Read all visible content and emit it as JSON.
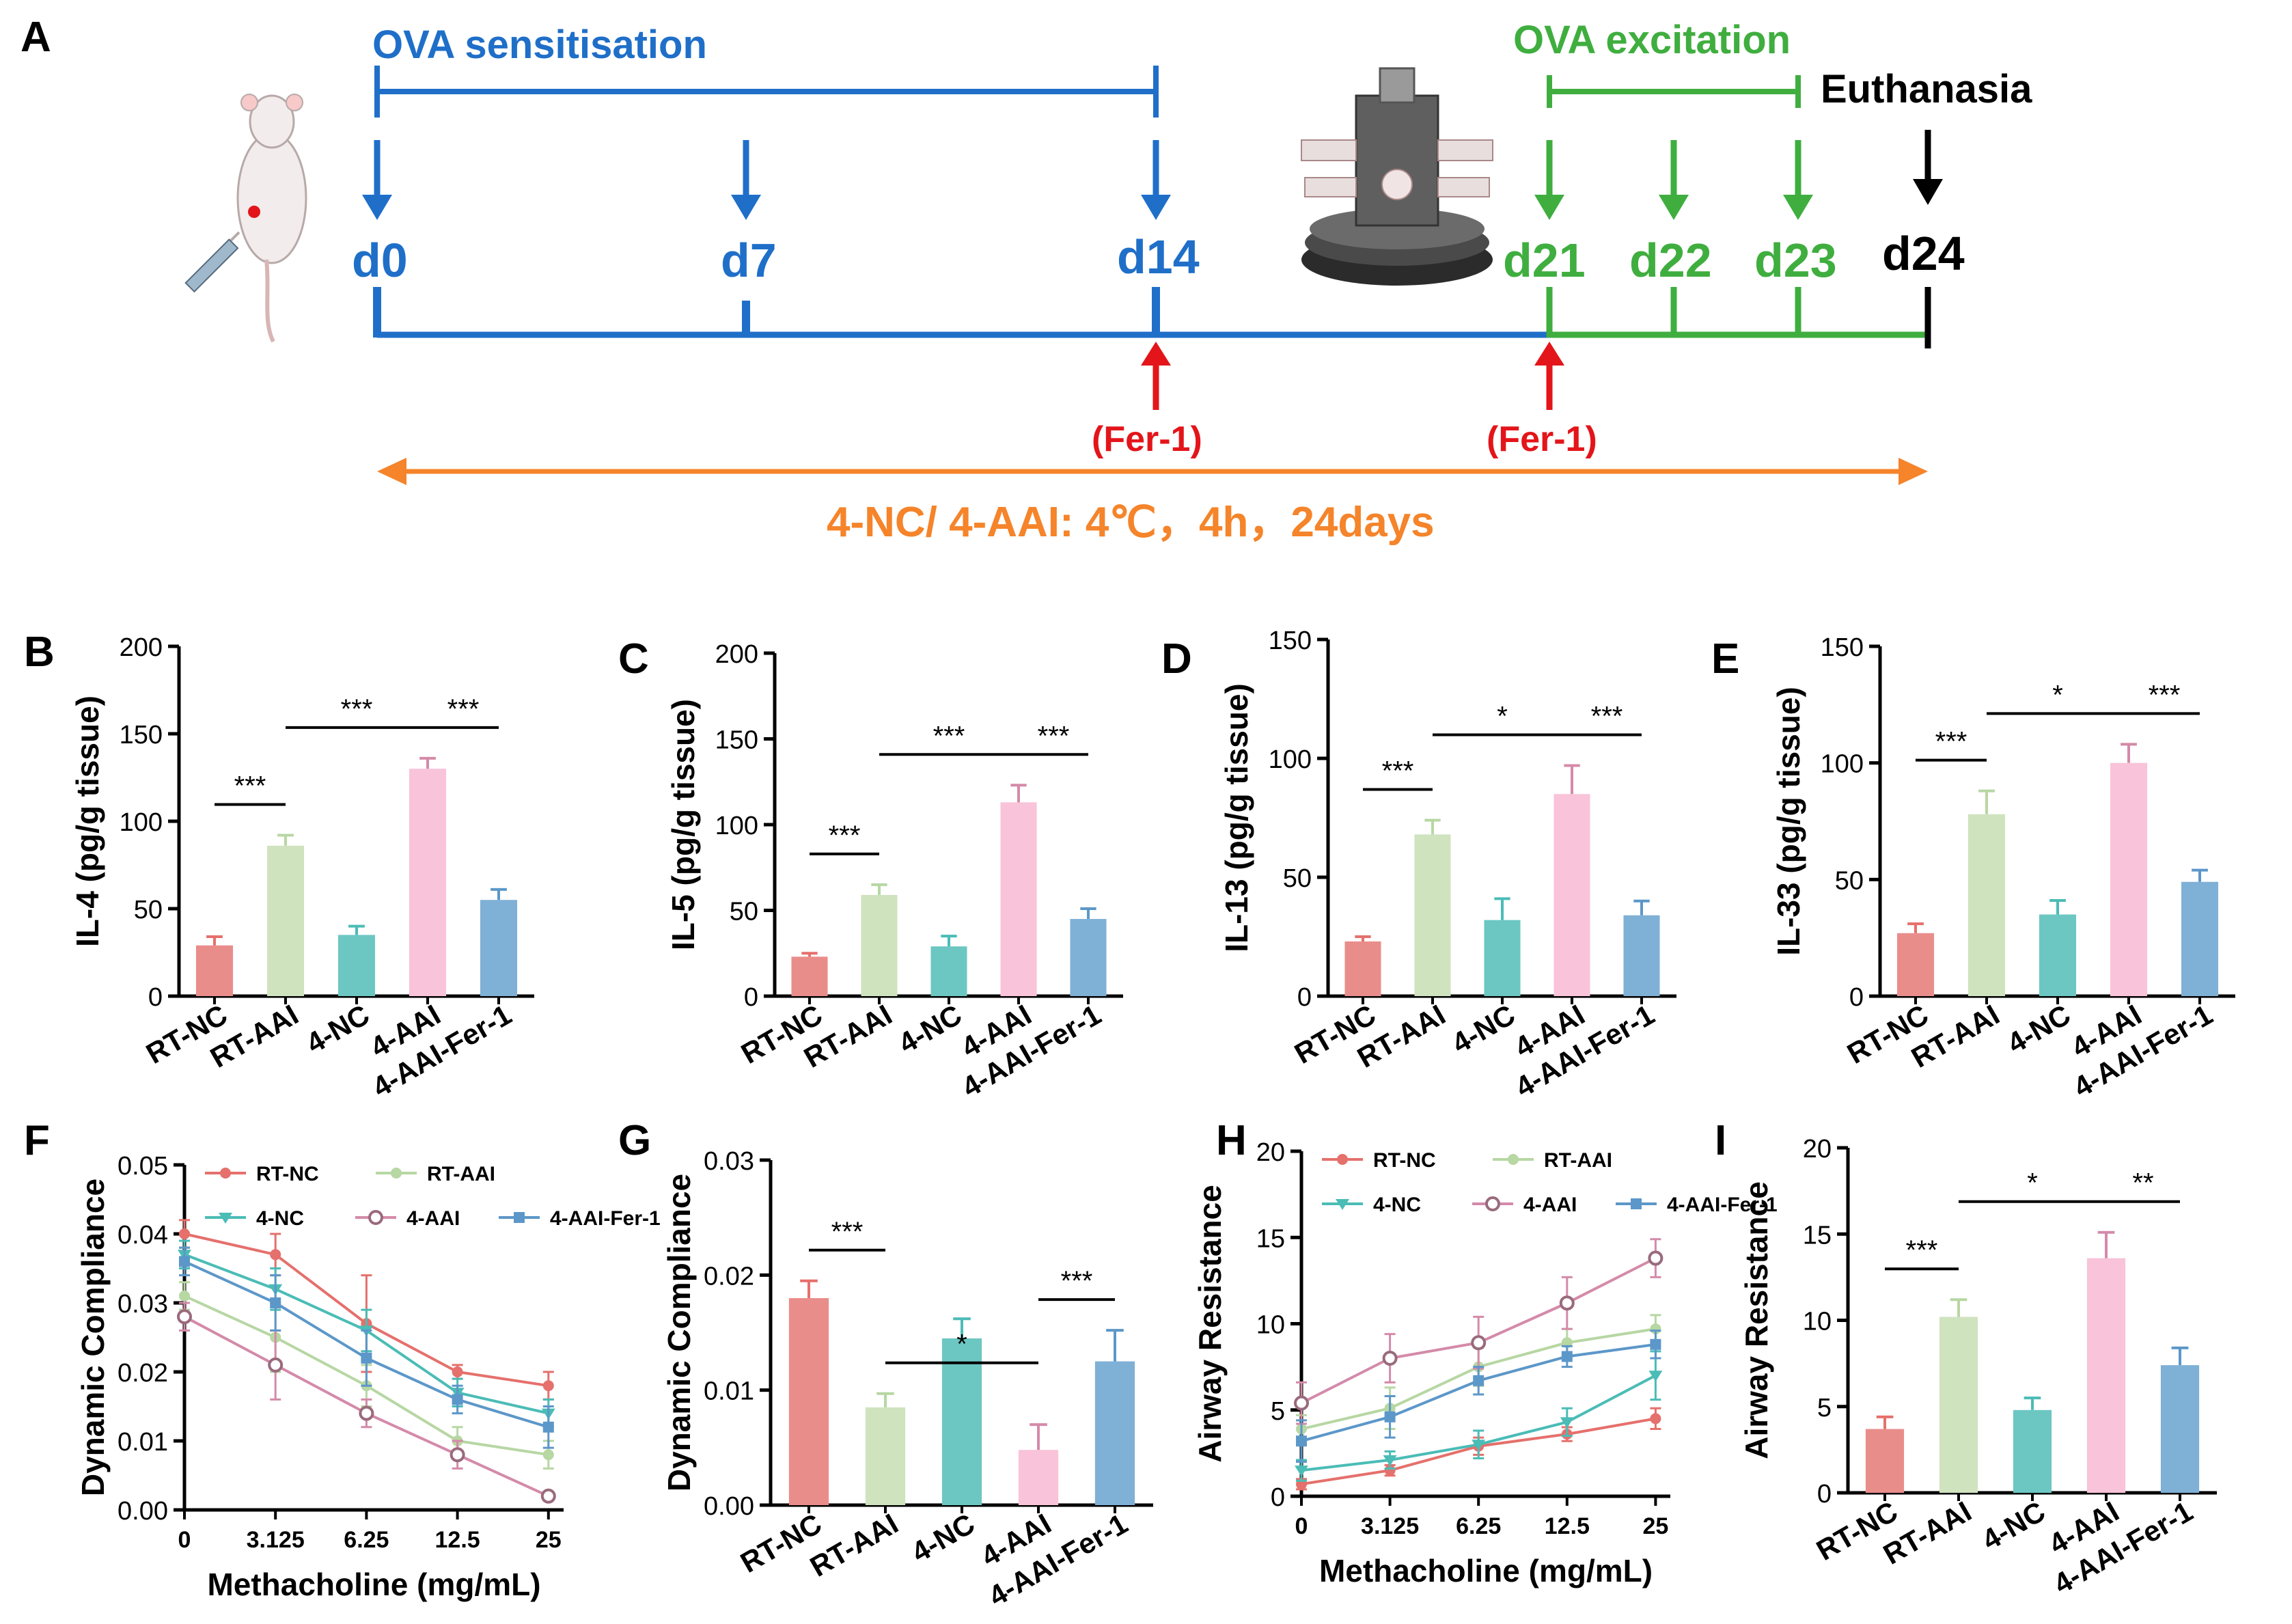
{
  "colors": {
    "blue": "#1f6fc9",
    "green": "#3fae3f",
    "red": "#e3151a",
    "orange": "#f5842a",
    "black": "#000000",
    "series": [
      "#e98d8b",
      "#cfe3bf",
      "#6cc7c2",
      "#f9c3d9",
      "#7fb0d6"
    ],
    "series_dark": [
      "#e5706c",
      "#b7d7a3",
      "#4bbcb6",
      "#d48aa9",
      "#5c97c9"
    ]
  },
  "panel_labels": {
    "A": "A",
    "B": "B",
    "C": "C",
    "D": "D",
    "E": "E",
    "F": "F",
    "G": "G",
    "H": "H",
    "I": "I"
  },
  "timeline": {
    "sensitisation_label": "OVA sensitisation",
    "excitation_label": "OVA excitation",
    "euthanasia_label": "Euthanasia",
    "days": [
      "d0",
      "d7",
      "d14",
      "d21",
      "d22",
      "d23",
      "d24"
    ],
    "treatment_label": "(Fer-1)",
    "exposure_label": "4-NC/ 4-AAI: 4℃，4h，24days"
  },
  "chart_data": [
    {
      "panel": "B",
      "type": "bar",
      "ylabel": "IL-4 (pg/g tissue)",
      "ylim": [
        0,
        200
      ],
      "yticks": [
        0,
        50,
        100,
        150,
        200
      ],
      "categories": [
        "RT-NC",
        "RT-AAI",
        "4-NC",
        "4-AAI",
        "4-AAI-Fer-1"
      ],
      "values": [
        29,
        86,
        35,
        130,
        55
      ],
      "errors": [
        5,
        6,
        5,
        6,
        6
      ],
      "significance": [
        {
          "from": 0,
          "to": 1,
          "label": "***"
        },
        {
          "from": 1,
          "to": 3,
          "label": "***"
        },
        {
          "from": 3,
          "to": 4,
          "label": "***"
        }
      ]
    },
    {
      "panel": "C",
      "type": "bar",
      "ylabel": "IL-5 (pg/g tissue)",
      "ylim": [
        0,
        200
      ],
      "yticks": [
        0,
        50,
        100,
        150,
        200
      ],
      "categories": [
        "RT-NC",
        "RT-AAI",
        "4-NC",
        "4-AAI",
        "4-AAI-Fer-1"
      ],
      "values": [
        23,
        59,
        29,
        113,
        45
      ],
      "errors": [
        2,
        6,
        6,
        10,
        6
      ],
      "significance": [
        {
          "from": 0,
          "to": 1,
          "label": "***"
        },
        {
          "from": 1,
          "to": 3,
          "label": "***"
        },
        {
          "from": 3,
          "to": 4,
          "label": "***"
        }
      ]
    },
    {
      "panel": "D",
      "type": "bar",
      "ylabel": "IL-13 (pg/g tissue)",
      "ylim": [
        0,
        150
      ],
      "yticks": [
        0,
        50,
        100,
        150
      ],
      "categories": [
        "RT-NC",
        "RT-AAI",
        "4-NC",
        "4-AAI",
        "4-AAI-Fer-1"
      ],
      "values": [
        23,
        68,
        32,
        85,
        34
      ],
      "errors": [
        2,
        6,
        9,
        12,
        6
      ],
      "significance": [
        {
          "from": 0,
          "to": 1,
          "label": "***"
        },
        {
          "from": 1,
          "to": 3,
          "label": "*"
        },
        {
          "from": 3,
          "to": 4,
          "label": "***"
        }
      ]
    },
    {
      "panel": "E",
      "type": "bar",
      "ylabel": "IL-33 (pg/g tissue)",
      "ylim": [
        0,
        150
      ],
      "yticks": [
        0,
        50,
        100,
        150
      ],
      "categories": [
        "RT-NC",
        "RT-AAI",
        "4-NC",
        "4-AAI",
        "4-AAI-Fer-1"
      ],
      "values": [
        27,
        78,
        35,
        100,
        49
      ],
      "errors": [
        4,
        10,
        6,
        8,
        5
      ],
      "significance": [
        {
          "from": 0,
          "to": 1,
          "label": "***"
        },
        {
          "from": 1,
          "to": 3,
          "label": "*"
        },
        {
          "from": 3,
          "to": 4,
          "label": "***"
        }
      ]
    },
    {
      "panel": "F",
      "type": "line",
      "ylabel": "Dynamic Compliance",
      "xlabel": "Methacholine (mg/mL)",
      "ylim": [
        0,
        0.05
      ],
      "yticks": [
        "0.00",
        "0.01",
        "0.02",
        "0.03",
        "0.04",
        "0.05"
      ],
      "x": [
        "0",
        "3.125",
        "6.25",
        "12.5",
        "25"
      ],
      "series": [
        {
          "name": "RT-NC",
          "values": [
            0.04,
            0.037,
            0.027,
            0.02,
            0.018
          ],
          "errors": [
            0.002,
            0.003,
            0.007,
            0.001,
            0.002
          ]
        },
        {
          "name": "RT-AAI",
          "values": [
            0.031,
            0.025,
            0.018,
            0.01,
            0.008
          ],
          "errors": [
            0.002,
            0.005,
            0.003,
            0.002,
            0.002
          ]
        },
        {
          "name": "4-NC",
          "values": [
            0.037,
            0.032,
            0.026,
            0.017,
            0.014
          ],
          "errors": [
            0.002,
            0.003,
            0.003,
            0.002,
            0.002
          ]
        },
        {
          "name": "4-AAI",
          "values": [
            0.028,
            0.021,
            0.014,
            0.008,
            0.002
          ],
          "errors": [
            0.002,
            0.005,
            0.002,
            0.002,
            0.0005
          ]
        },
        {
          "name": "4-AAI-Fer-1",
          "values": [
            0.036,
            0.03,
            0.022,
            0.016,
            0.012
          ],
          "errors": [
            0.002,
            0.004,
            0.004,
            0.002,
            0.003
          ]
        }
      ]
    },
    {
      "panel": "G",
      "type": "bar",
      "ylabel": "Dynamic Compliance",
      "ylim": [
        0,
        0.03
      ],
      "yticks": [
        "0.00",
        "0.01",
        "0.02",
        "0.03"
      ],
      "categories": [
        "RT-NC",
        "RT-AAI",
        "4-NC",
        "4-AAI",
        "4-AAI-Fer-1"
      ],
      "values": [
        0.018,
        0.0085,
        0.0145,
        0.0048,
        0.0125
      ],
      "errors": [
        0.0015,
        0.0012,
        0.0017,
        0.0022,
        0.0027
      ],
      "significance": [
        {
          "from": 0,
          "to": 1,
          "label": "***"
        },
        {
          "from": 1,
          "to": 3,
          "label": "*"
        },
        {
          "from": 3,
          "to": 4,
          "label": "***"
        }
      ]
    },
    {
      "panel": "H",
      "type": "line",
      "ylabel": "Airway Resistance",
      "xlabel": "Methacholine (mg/mL)",
      "ylim": [
        0,
        20
      ],
      "yticks": [
        "0",
        "5",
        "10",
        "15",
        "20"
      ],
      "x": [
        "0",
        "3.125",
        "6.25",
        "12.5",
        "25"
      ],
      "series": [
        {
          "name": "RT-NC",
          "values": [
            0.7,
            1.5,
            2.9,
            3.6,
            4.5
          ],
          "errors": [
            0.3,
            0.3,
            0.5,
            0.4,
            0.6
          ]
        },
        {
          "name": "RT-AAI",
          "values": [
            3.9,
            5.1,
            7.5,
            8.9,
            9.7
          ],
          "errors": [
            0.8,
            1.2,
            1.1,
            0.8,
            0.8
          ]
        },
        {
          "name": "4-NC",
          "values": [
            1.5,
            2.1,
            3.0,
            4.3,
            7.0
          ],
          "errors": [
            0.6,
            0.5,
            0.8,
            0.8,
            1.4
          ]
        },
        {
          "name": "4-AAI",
          "values": [
            5.4,
            8.0,
            8.9,
            11.2,
            13.8
          ],
          "errors": [
            1.2,
            1.4,
            1.5,
            1.5,
            1.1
          ]
        },
        {
          "name": "4-AAI-Fer-1",
          "values": [
            3.2,
            4.6,
            6.7,
            8.1,
            8.8
          ],
          "errors": [
            1.2,
            1.2,
            0.8,
            0.6,
            0.8
          ]
        }
      ]
    },
    {
      "panel": "I",
      "type": "bar",
      "ylabel": "Airway Resistance",
      "ylim": [
        0,
        20
      ],
      "yticks": [
        "0",
        "5",
        "10",
        "15",
        "20"
      ],
      "categories": [
        "RT-NC",
        "RT-AAI",
        "4-NC",
        "4-AAI",
        "4-AAI-Fer-1"
      ],
      "values": [
        3.7,
        10.2,
        4.8,
        13.6,
        7.4
      ],
      "errors": [
        0.7,
        1.0,
        0.7,
        1.5,
        1.0
      ],
      "significance": [
        {
          "from": 0,
          "to": 1,
          "label": "***"
        },
        {
          "from": 1,
          "to": 3,
          "label": "*"
        },
        {
          "from": 3,
          "to": 4,
          "label": "**"
        }
      ]
    }
  ]
}
